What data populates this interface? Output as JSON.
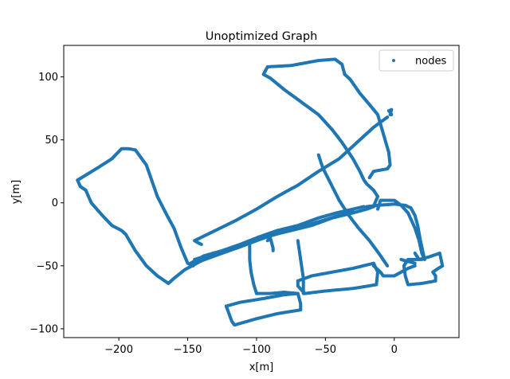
{
  "chart_data": {
    "type": "scatter",
    "title": "Unoptimized Graph",
    "xlabel": "x[m]",
    "ylabel": "y[m]",
    "xlim": [
      -240,
      47
    ],
    "ylim": [
      -107,
      125
    ],
    "xticks": [
      -200,
      -150,
      -100,
      -50,
      0
    ],
    "yticks": [
      -100,
      -50,
      0,
      50,
      100
    ],
    "xtick_labels": [
      "−200",
      "−150",
      "−100",
      "−50",
      "0"
    ],
    "ytick_labels": [
      "−100",
      "−50",
      "0",
      "50",
      "100"
    ],
    "grid": false,
    "legend": {
      "placement": "top-right",
      "entries": [
        "nodes"
      ]
    },
    "colors": {
      "nodes": "#1f77b4"
    },
    "series": [
      {
        "name": "nodes",
        "paths": [
          [
            [
              -230,
              18
            ],
            [
              -215,
              28
            ],
            [
              -205,
              35
            ],
            [
              -198,
              43
            ],
            [
              -193,
              43
            ],
            [
              -188,
              42
            ],
            [
              -180,
              30
            ],
            [
              -172,
              5
            ],
            [
              -165,
              -10
            ],
            [
              -160,
              -20
            ],
            [
              -155,
              -35
            ],
            [
              -150,
              -48
            ],
            [
              -146,
              -50
            ]
          ],
          [
            [
              -230,
              18
            ],
            [
              -228,
              13
            ],
            [
              -224,
              10
            ],
            [
              -220,
              0
            ],
            [
              -212,
              -10
            ],
            [
              -205,
              -18
            ],
            [
              -198,
              -22
            ],
            [
              -195,
              -25
            ],
            [
              -188,
              -38
            ],
            [
              -180,
              -50
            ],
            [
              -172,
              -58
            ],
            [
              -164,
              -64
            ],
            [
              -160,
              -60
            ],
            [
              -152,
              -53
            ],
            [
              -140,
              -46
            ],
            [
              -125,
              -40
            ],
            [
              -112,
              -35
            ],
            [
              -100,
              -30
            ],
            [
              -90,
              -26
            ],
            [
              -75,
              -22
            ],
            [
              -60,
              -18
            ],
            [
              -45,
              -12
            ],
            [
              -30,
              -8
            ],
            [
              -20,
              -5
            ],
            [
              -15,
              -3
            ],
            [
              -14,
              0
            ],
            [
              -12,
              5
            ],
            [
              -15,
              10
            ],
            [
              -20,
              15
            ],
            [
              -22,
              18
            ],
            [
              -25,
              25
            ],
            [
              -30,
              35
            ],
            [
              -38,
              48
            ],
            [
              -45,
              58
            ],
            [
              -55,
              70
            ],
            [
              -70,
              82
            ],
            [
              -80,
              90
            ],
            [
              -90,
              99
            ],
            [
              -95,
              102
            ],
            [
              -92,
              108
            ],
            [
              -75,
              109
            ],
            [
              -55,
              113
            ],
            [
              -43,
              114
            ],
            [
              -38,
              110
            ],
            [
              -36,
              102
            ],
            [
              -32,
              98
            ],
            [
              -25,
              87
            ],
            [
              -18,
              78
            ],
            [
              -12,
              70
            ],
            [
              -8,
              55
            ],
            [
              -4,
              40
            ],
            [
              -3,
              30
            ],
            [
              -5,
              27
            ],
            [
              -15,
              25
            ],
            [
              -18,
              20
            ]
          ],
          [
            [
              -2,
              70
            ],
            [
              -3,
              72
            ],
            [
              -4,
              73
            ],
            [
              -2,
              74
            ],
            [
              -3,
              70
            ]
          ],
          [
            [
              -145,
              -45
            ],
            [
              -130,
              -40
            ],
            [
              -115,
              -36
            ],
            [
              -105,
              -32
            ],
            [
              -95,
              -28
            ],
            [
              -80,
              -23
            ],
            [
              -70,
              -20
            ],
            [
              -55,
              -15
            ],
            [
              -40,
              -10
            ],
            [
              -30,
              -7
            ]
          ],
          [
            [
              -148,
              -48
            ],
            [
              -138,
              -42
            ],
            [
              -125,
              -38
            ],
            [
              -112,
              -33
            ],
            [
              -98,
              -27
            ],
            [
              -85,
              -22
            ],
            [
              -70,
              -18
            ],
            [
              -55,
              -12
            ],
            [
              -42,
              -8
            ],
            [
              -30,
              -5
            ],
            [
              -22,
              -3
            ]
          ],
          [
            [
              -5,
              68
            ],
            [
              -15,
              60
            ],
            [
              -25,
              50
            ],
            [
              -40,
              35
            ],
            [
              -55,
              25
            ],
            [
              -70,
              14
            ],
            [
              -85,
              5
            ],
            [
              -100,
              -5
            ],
            [
              -115,
              -14
            ],
            [
              -130,
              -22
            ],
            [
              -145,
              -30
            ]
          ],
          [
            [
              -55,
              38
            ],
            [
              -52,
              28
            ],
            [
              -46,
              15
            ],
            [
              -40,
              2
            ],
            [
              -33,
              -10
            ],
            [
              -26,
              -20
            ],
            [
              -18,
              -30
            ],
            [
              -10,
              -42
            ],
            [
              -5,
              -50
            ]
          ],
          [
            [
              -105,
              -30
            ],
            [
              -105,
              -45
            ],
            [
              -104,
              -55
            ],
            [
              -102,
              -65
            ],
            [
              -100,
              -72
            ]
          ],
          [
            [
              -70,
              -30
            ],
            [
              -68,
              -45
            ],
            [
              -66,
              -60
            ],
            [
              -66,
              -72
            ]
          ],
          [
            [
              -92,
              -30
            ],
            [
              -90,
              -28
            ],
            [
              -88,
              -36
            ],
            [
              -88,
              -38
            ]
          ],
          [
            [
              -100,
              -72
            ],
            [
              -90,
              -72
            ],
            [
              -80,
              -71
            ],
            [
              -70,
              -72
            ]
          ],
          [
            [
              -70,
              -62
            ],
            [
              -60,
              -58
            ],
            [
              -45,
              -55
            ],
            [
              -30,
              -52
            ],
            [
              -15,
              -48
            ],
            [
              -12,
              -55
            ],
            [
              -13,
              -65
            ],
            [
              -30,
              -68
            ],
            [
              -50,
              -70
            ],
            [
              -65,
              -72
            ],
            [
              -70,
              -66
            ],
            [
              -70,
              -62
            ]
          ],
          [
            [
              -122,
              -82
            ],
            [
              -112,
              -79
            ],
            [
              -95,
              -76
            ],
            [
              -80,
              -73
            ],
            [
              -70,
              -72
            ],
            [
              -68,
              -80
            ],
            [
              -68,
              -85
            ],
            [
              -85,
              -88
            ],
            [
              -100,
              -92
            ],
            [
              -116,
              -97
            ],
            [
              -118,
              -94
            ],
            [
              -120,
              -88
            ],
            [
              -122,
              -82
            ]
          ],
          [
            [
              -15,
              -50
            ],
            [
              -10,
              -55
            ],
            [
              -8,
              -58
            ],
            [
              0,
              -58
            ],
            [
              5,
              -55
            ],
            [
              10,
              -52
            ],
            [
              15,
              -50
            ]
          ],
          [
            [
              -12,
              -5
            ],
            [
              -10,
              2
            ],
            [
              0,
              2
            ],
            [
              5,
              -2
            ],
            [
              10,
              -8
            ],
            [
              15,
              -20
            ],
            [
              18,
              -30
            ],
            [
              20,
              -40
            ],
            [
              22,
              -45
            ]
          ],
          [
            [
              -20,
              -3
            ],
            [
              -12,
              -2
            ],
            [
              0,
              -1
            ],
            [
              8,
              -2
            ],
            [
              12,
              -4
            ],
            [
              15,
              -10
            ],
            [
              17,
              -18
            ],
            [
              19,
              -30
            ],
            [
              21,
              -40
            ],
            [
              22,
              -45
            ]
          ],
          [
            [
              15,
              -40
            ],
            [
              18,
              -45
            ],
            [
              25,
              -43
            ],
            [
              33,
              -40
            ],
            [
              35,
              -50
            ],
            [
              32,
              -52
            ],
            [
              28,
              -55
            ],
            [
              30,
              -58
            ],
            [
              30,
              -62
            ],
            [
              20,
              -64
            ],
            [
              10,
              -65
            ],
            [
              8,
              -58
            ],
            [
              7,
              -50
            ],
            [
              10,
              -45
            ],
            [
              20,
              -45
            ]
          ],
          [
            [
              5,
              -45
            ],
            [
              8,
              -46
            ],
            [
              12,
              -47
            ],
            [
              15,
              -48
            ]
          ],
          [
            [
              -145,
              -30
            ],
            [
              -142,
              -32
            ],
            [
              -140,
              -33
            ]
          ]
        ]
      }
    ]
  }
}
